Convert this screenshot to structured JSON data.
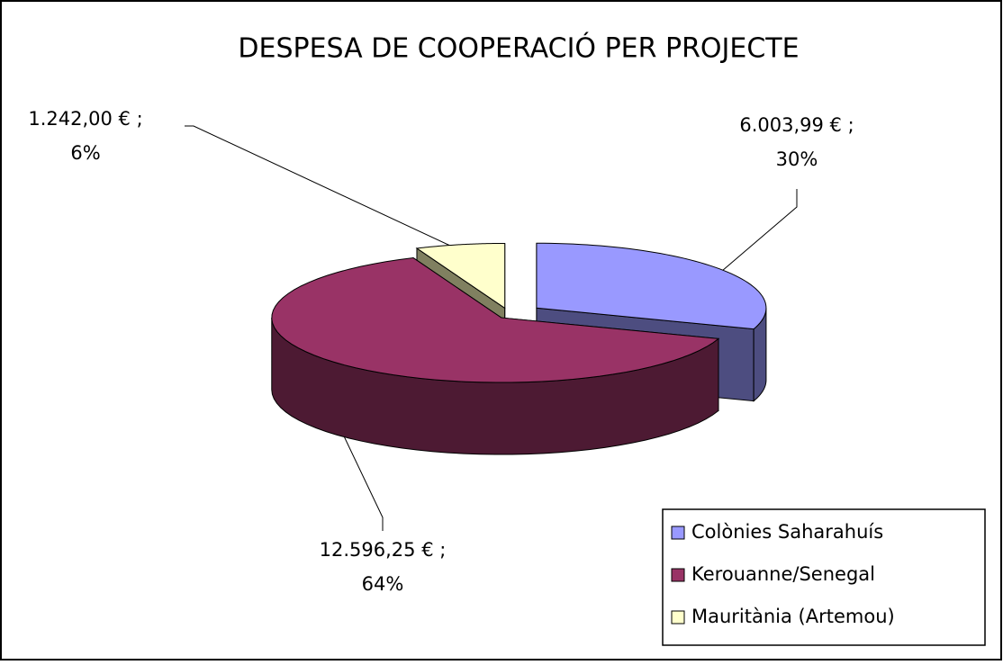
{
  "chart_data": {
    "type": "pie3d",
    "title": "DESPESA DE COOPERACIÓ PER PROJECTE",
    "categories": [
      "Colònies Saharahuís",
      "Kerouanne/Senegal",
      "Mauritània (Artemou)"
    ],
    "values": [
      6003.99,
      12596.25,
      1242.0
    ],
    "value_labels": [
      "6.003,99 € ;",
      "12.596,25 € ;",
      "1.242,00 € ;"
    ],
    "percent_labels": [
      "30%",
      "64%",
      "6%"
    ],
    "colors": [
      "#9999ff",
      "#993366",
      "#ffffcc"
    ],
    "side_colors": [
      "#4d4d80",
      "#4d1a33",
      "#808060"
    ],
    "legend": "bottom-right"
  }
}
